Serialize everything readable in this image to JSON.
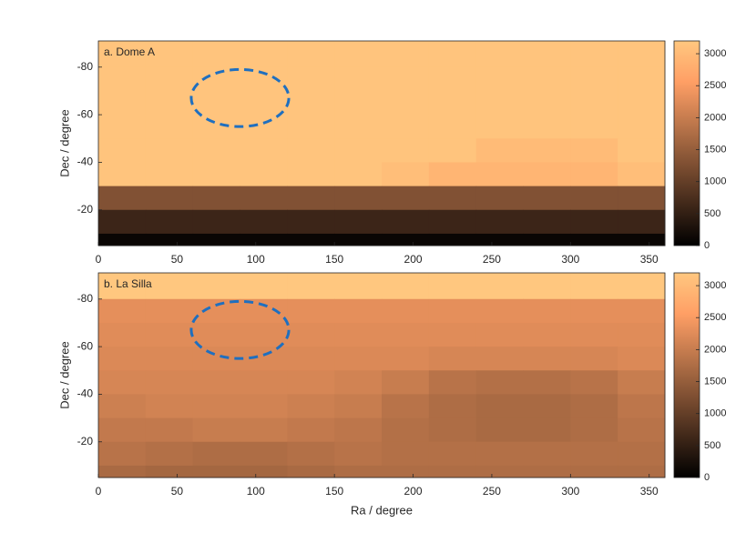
{
  "chart_data": [
    {
      "type": "heatmap",
      "title": "a. Dome A",
      "ylabel": "Dec / degree",
      "xbins": [
        0,
        30,
        60,
        90,
        120,
        150,
        180,
        210,
        240,
        270,
        300,
        330,
        360
      ],
      "ybins": [
        -91,
        -80,
        -70,
        -60,
        -50,
        -40,
        -30,
        -20,
        -10,
        -5
      ],
      "z": [
        [
          3150,
          3150,
          3150,
          3150,
          3150,
          3150,
          3150,
          3150,
          3150,
          3150,
          3150,
          3150
        ],
        [
          3150,
          3150,
          3150,
          3150,
          3150,
          3150,
          3150,
          3150,
          3150,
          3150,
          3150,
          3150
        ],
        [
          3150,
          3150,
          3150,
          3150,
          3150,
          3150,
          3150,
          3150,
          3150,
          3150,
          3150,
          3150
        ],
        [
          3150,
          3150,
          3150,
          3150,
          3150,
          3150,
          3150,
          3150,
          3150,
          3150,
          3150,
          3150
        ],
        [
          3150,
          3150,
          3150,
          3150,
          3150,
          3150,
          3150,
          3150,
          3000,
          3000,
          3000,
          3150
        ],
        [
          3150,
          3150,
          3150,
          3150,
          3150,
          3150,
          3050,
          2900,
          2900,
          2900,
          2900,
          3050
        ],
        [
          1300,
          1300,
          1300,
          1300,
          1300,
          1300,
          1300,
          1300,
          1300,
          1300,
          1300,
          1300
        ],
        [
          600,
          600,
          600,
          600,
          600,
          600,
          600,
          600,
          600,
          600,
          600,
          600
        ],
        [
          100,
          100,
          100,
          100,
          100,
          100,
          100,
          100,
          100,
          100,
          100,
          100
        ]
      ],
      "xlim": [
        0,
        360
      ],
      "xticks": [
        0,
        50,
        100,
        150,
        200,
        250,
        300,
        350
      ],
      "ylim": [
        -91,
        -5
      ],
      "y_reversed": true,
      "yticks": [
        -80,
        -60,
        -40,
        -20
      ],
      "clim": [
        0,
        3200
      ],
      "cticks": [
        0,
        500,
        1000,
        1500,
        2000,
        2500,
        3000
      ],
      "colormap": "copper",
      "region": {
        "center": [
          90,
          -67
        ],
        "radius": [
          31,
          12
        ],
        "color": "#1f6fbf"
      }
    },
    {
      "type": "heatmap",
      "title": "b. La Silla",
      "xlabel": "Ra / degree",
      "ylabel": "Dec / degree",
      "xbins": [
        0,
        30,
        60,
        90,
        120,
        150,
        180,
        210,
        240,
        270,
        300,
        330,
        360
      ],
      "ybins": [
        -91,
        -80,
        -70,
        -60,
        -50,
        -40,
        -30,
        -20,
        -10,
        -5
      ],
      "z": [
        [
          3200,
          3200,
          3200,
          3200,
          3200,
          3200,
          3200,
          3200,
          3200,
          3200,
          3200,
          3200
        ],
        [
          2300,
          2300,
          2300,
          2300,
          2300,
          2300,
          2300,
          2300,
          2300,
          2300,
          2300,
          2300
        ],
        [
          2250,
          2250,
          2250,
          2250,
          2250,
          2250,
          2250,
          2250,
          2250,
          2250,
          2250,
          2250
        ],
        [
          2200,
          2200,
          2200,
          2200,
          2200,
          2200,
          2200,
          2150,
          2150,
          2150,
          2150,
          2200
        ],
        [
          2150,
          2150,
          2150,
          2150,
          2150,
          2100,
          2000,
          1850,
          1800,
          1800,
          1850,
          2000
        ],
        [
          2050,
          2100,
          2100,
          2100,
          2050,
          2000,
          1850,
          1750,
          1700,
          1700,
          1750,
          1900
        ],
        [
          1950,
          1950,
          2000,
          2000,
          1950,
          1900,
          1800,
          1750,
          1700,
          1700,
          1750,
          1850
        ],
        [
          1850,
          1800,
          1750,
          1750,
          1800,
          1850,
          1800,
          1800,
          1800,
          1800,
          1800,
          1800
        ],
        [
          1700,
          1650,
          1650,
          1650,
          1700,
          1750,
          1750,
          1750,
          1750,
          1750,
          1750,
          1750
        ]
      ],
      "xlim": [
        0,
        360
      ],
      "xticks": [
        0,
        50,
        100,
        150,
        200,
        250,
        300,
        350
      ],
      "ylim": [
        -91,
        -5
      ],
      "y_reversed": true,
      "yticks": [
        -80,
        -60,
        -40,
        -20
      ],
      "clim": [
        0,
        3200
      ],
      "cticks": [
        0,
        500,
        1000,
        1500,
        2000,
        2500,
        3000
      ],
      "colormap": "copper",
      "region": {
        "center": [
          90,
          -67
        ],
        "radius": [
          31,
          12
        ],
        "color": "#1f6fbf"
      }
    }
  ]
}
